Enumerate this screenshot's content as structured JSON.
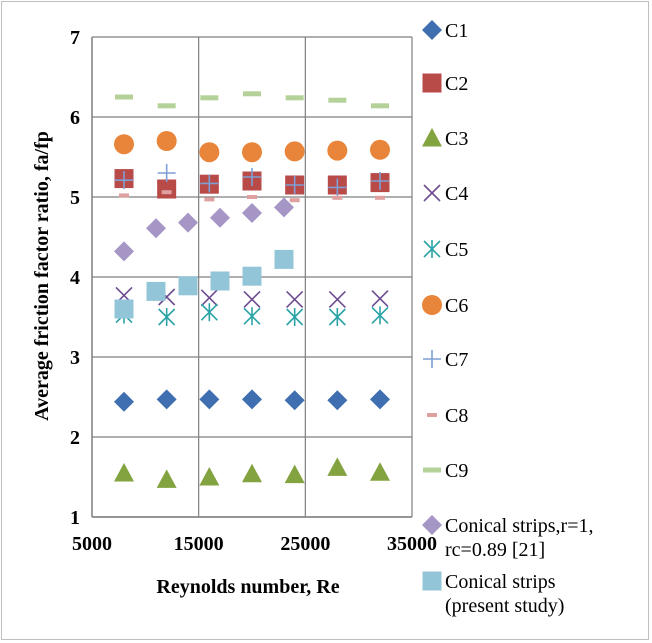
{
  "chart_data": {
    "type": "scatter",
    "title": "",
    "xlabel": "Reynolds number, Re",
    "ylabel": "Average friction factor ratio, fa/fp",
    "xlim": [
      5000,
      35000
    ],
    "ylim": [
      1,
      7
    ],
    "x_ticks": [
      "5000",
      "15000",
      "25000",
      "35000"
    ],
    "y_ticks": [
      "1",
      "2",
      "3",
      "4",
      "5",
      "6",
      "7"
    ],
    "grid": true,
    "legend_position": "right",
    "series": [
      {
        "name": "C1",
        "marker": "diamond",
        "color": "#3f6fb0",
        "x": [
          8000,
          12000,
          16000,
          20000,
          24000,
          28000,
          32000
        ],
        "y": [
          2.44,
          2.47,
          2.47,
          2.47,
          2.46,
          2.46,
          2.47
        ]
      },
      {
        "name": "C2",
        "marker": "square",
        "color": "#b84a48",
        "x": [
          8000,
          12000,
          16000,
          20000,
          24000,
          28000,
          32000
        ],
        "y": [
          5.23,
          5.1,
          5.16,
          5.2,
          5.15,
          5.15,
          5.18
        ]
      },
      {
        "name": "C3",
        "marker": "triangle",
        "color": "#82a33f",
        "x": [
          8000,
          12000,
          16000,
          20000,
          24000,
          28000,
          32000
        ],
        "y": [
          1.55,
          1.47,
          1.5,
          1.54,
          1.53,
          1.62,
          1.56
        ]
      },
      {
        "name": "C4",
        "marker": "x",
        "color": "#6e4c91",
        "x": [
          8000,
          12000,
          16000,
          20000,
          24000,
          28000,
          32000
        ],
        "y": [
          3.77,
          3.75,
          3.74,
          3.72,
          3.72,
          3.72,
          3.73
        ]
      },
      {
        "name": "C5",
        "marker": "star",
        "color": "#2aa3a6",
        "x": [
          8000,
          12000,
          16000,
          20000,
          24000,
          28000,
          32000
        ],
        "y": [
          3.53,
          3.5,
          3.56,
          3.51,
          3.5,
          3.5,
          3.52
        ]
      },
      {
        "name": "C6",
        "marker": "circle",
        "color": "#e8853a",
        "x": [
          8000,
          12000,
          16000,
          20000,
          24000,
          28000,
          32000
        ],
        "y": [
          5.66,
          5.7,
          5.56,
          5.56,
          5.57,
          5.58,
          5.59
        ]
      },
      {
        "name": "C7",
        "marker": "plus",
        "color": "#7f9fd6",
        "x": [
          8000,
          12000,
          16000,
          20000,
          24000,
          28000,
          32000
        ],
        "y": [
          5.21,
          5.3,
          5.17,
          5.25,
          5.15,
          5.12,
          5.2
        ]
      },
      {
        "name": "C8",
        "marker": "dash",
        "color": "#e0a0a0",
        "x": [
          8000,
          12000,
          16000,
          20000,
          24000,
          28000,
          32000
        ],
        "y": [
          5.02,
          5.06,
          4.97,
          5.0,
          4.96,
          4.99,
          4.99
        ]
      },
      {
        "name": "C9",
        "marker": "dash-long",
        "color": "#b5d19a",
        "x": [
          8000,
          12000,
          16000,
          20000,
          24000,
          28000,
          32000
        ],
        "y": [
          6.25,
          6.14,
          6.24,
          6.29,
          6.24,
          6.21,
          6.14
        ]
      },
      {
        "name": "Conical strips,r=1, rc=0.89 [21]",
        "legend_lines": [
          "Conical strips,r=1,",
          "rc=0.89 [21]"
        ],
        "marker": "diamond",
        "color": "#a596c6",
        "x": [
          8000,
          11000,
          14000,
          17000,
          20000,
          23000
        ],
        "y": [
          4.32,
          4.61,
          4.68,
          4.74,
          4.8,
          4.87
        ]
      },
      {
        "name": "Conical strips (present study)",
        "legend_lines": [
          "Conical strips",
          "(present study)"
        ],
        "marker": "square",
        "color": "#93c5d9",
        "x": [
          8000,
          11000,
          14000,
          17000,
          20000,
          23000
        ],
        "y": [
          3.6,
          3.82,
          3.89,
          3.95,
          4.01,
          4.22
        ]
      }
    ]
  }
}
